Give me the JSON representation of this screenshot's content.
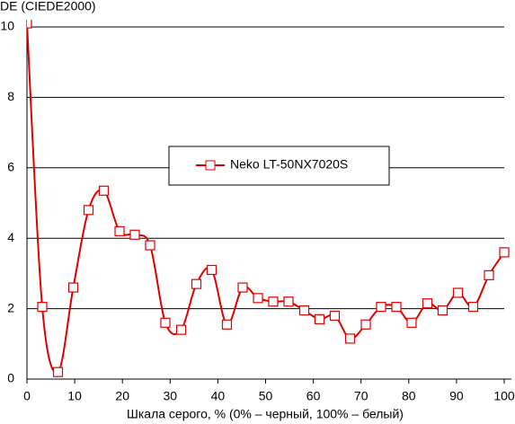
{
  "chart_data": {
    "type": "line",
    "title": "DE (CIEDE2000)",
    "x_label": "Шкала серого, % (0% – черный, 100% – белый)",
    "x": [
      0,
      3.2,
      6.5,
      9.7,
      12.9,
      16.1,
      19.4,
      22.6,
      25.8,
      29.0,
      32.3,
      35.5,
      38.7,
      41.9,
      45.2,
      48.4,
      51.6,
      54.8,
      58.1,
      61.3,
      64.5,
      67.7,
      71.0,
      74.2,
      77.4,
      80.6,
      83.9,
      87.1,
      90.3,
      93.5,
      96.8,
      100
    ],
    "series": [
      {
        "name": "Neko LT-50NX7020S",
        "color": "#e00000",
        "values": [
          10.1,
          2.05,
          0.2,
          2.6,
          4.8,
          5.35,
          4.2,
          4.1,
          3.8,
          1.6,
          1.4,
          2.7,
          3.1,
          1.55,
          2.6,
          2.3,
          2.2,
          2.2,
          1.95,
          1.7,
          1.8,
          1.15,
          1.55,
          2.05,
          2.05,
          1.6,
          2.15,
          1.95,
          2.45,
          2.05,
          2.95,
          3.6
        ]
      }
    ],
    "xlim": [
      0,
      100
    ],
    "xticks": [
      0,
      10,
      20,
      30,
      40,
      50,
      60,
      70,
      80,
      90,
      100
    ],
    "ylim": [
      0,
      10
    ],
    "yticks": [
      0,
      2,
      4,
      6,
      8,
      10
    ],
    "grid": true,
    "legend": "center"
  }
}
